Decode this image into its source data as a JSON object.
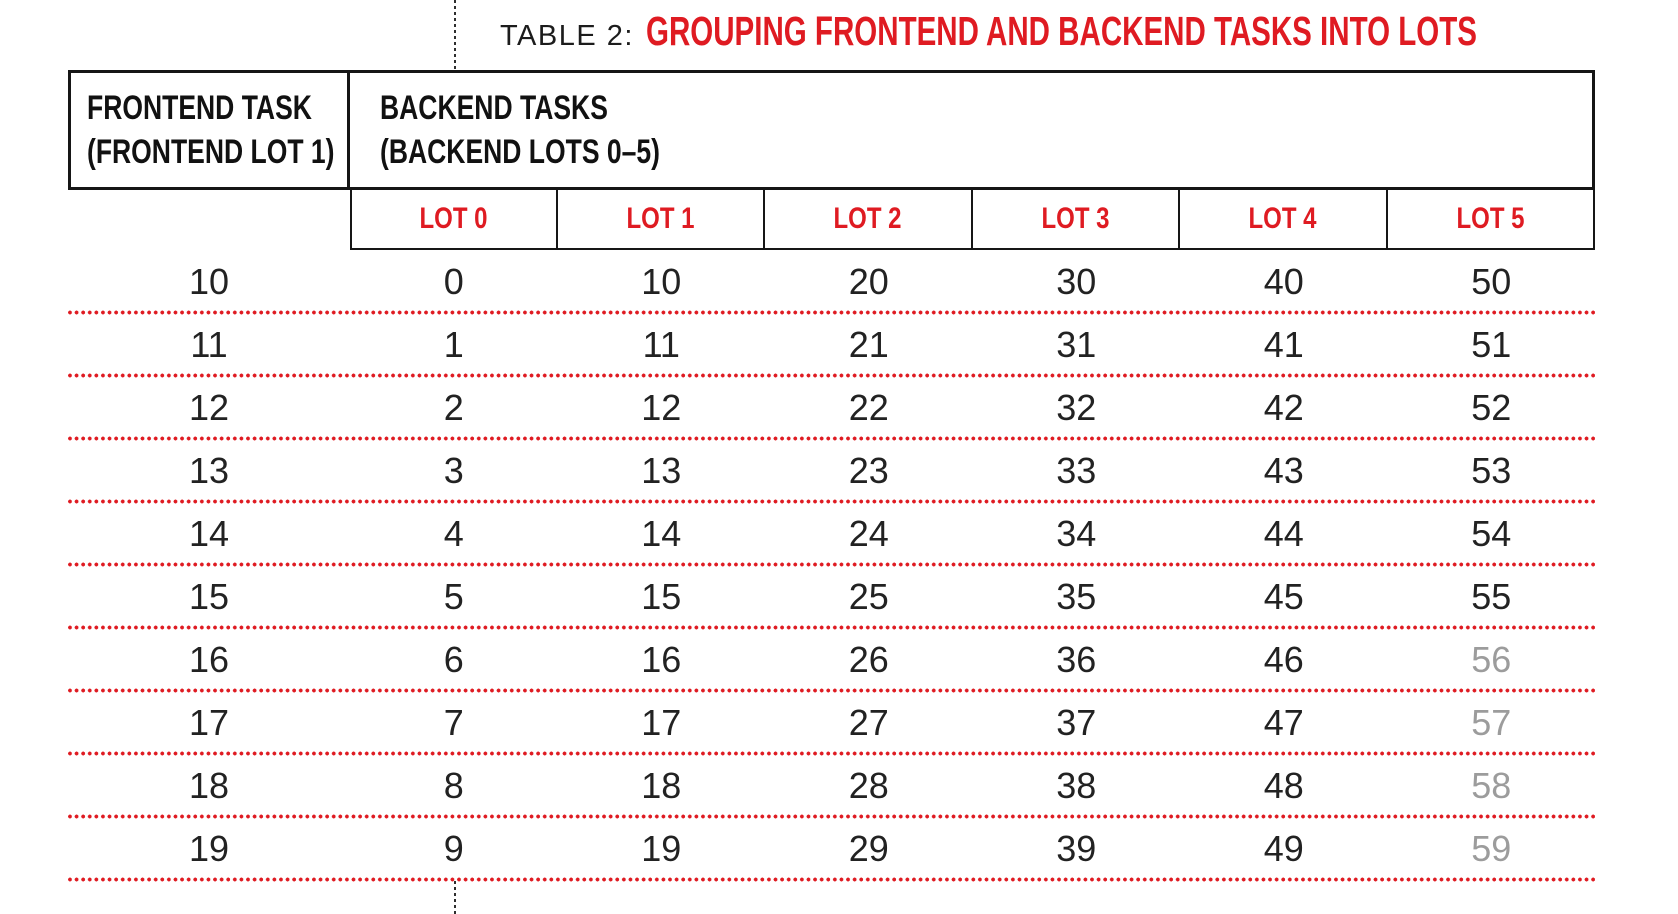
{
  "title": {
    "prefix": "TABLE 2:",
    "main": "GROUPING FRONTEND AND BACKEND TASKS INTO LOTS"
  },
  "table": {
    "frontend_header": {
      "line1": "FRONTEND TASK",
      "line2": "(FRONTEND LOT 1)"
    },
    "backend_header": {
      "line1": "BACKEND TASKS",
      "line2": "(BACKEND LOTS 0–5)"
    },
    "lot_headers": [
      "LOT 0",
      "LOT 1",
      "LOT 2",
      "LOT 3",
      "LOT 4",
      "LOT 5"
    ],
    "rows": [
      {
        "frontend": "10",
        "lots": [
          "0",
          "10",
          "20",
          "30",
          "40",
          "50"
        ]
      },
      {
        "frontend": "11",
        "lots": [
          "1",
          "11",
          "21",
          "31",
          "41",
          "51"
        ]
      },
      {
        "frontend": "12",
        "lots": [
          "2",
          "12",
          "22",
          "32",
          "42",
          "52"
        ]
      },
      {
        "frontend": "13",
        "lots": [
          "3",
          "13",
          "23",
          "33",
          "43",
          "53"
        ]
      },
      {
        "frontend": "14",
        "lots": [
          "4",
          "14",
          "24",
          "34",
          "44",
          "54"
        ]
      },
      {
        "frontend": "15",
        "lots": [
          "5",
          "15",
          "25",
          "35",
          "45",
          "55"
        ]
      },
      {
        "frontend": "16",
        "lots": [
          "6",
          "16",
          "26",
          "36",
          "46",
          "56"
        ]
      },
      {
        "frontend": "17",
        "lots": [
          "7",
          "17",
          "27",
          "37",
          "47",
          "57"
        ]
      },
      {
        "frontend": "18",
        "lots": [
          "8",
          "18",
          "28",
          "38",
          "48",
          "58"
        ]
      },
      {
        "frontend": "19",
        "lots": [
          "9",
          "19",
          "29",
          "39",
          "49",
          "59"
        ]
      }
    ],
    "muted_note": "values 56-59 rendered gray"
  },
  "colors": {
    "accent_red": "#df1b22",
    "muted_gray": "#9c9c9c",
    "border_black": "#161616"
  }
}
